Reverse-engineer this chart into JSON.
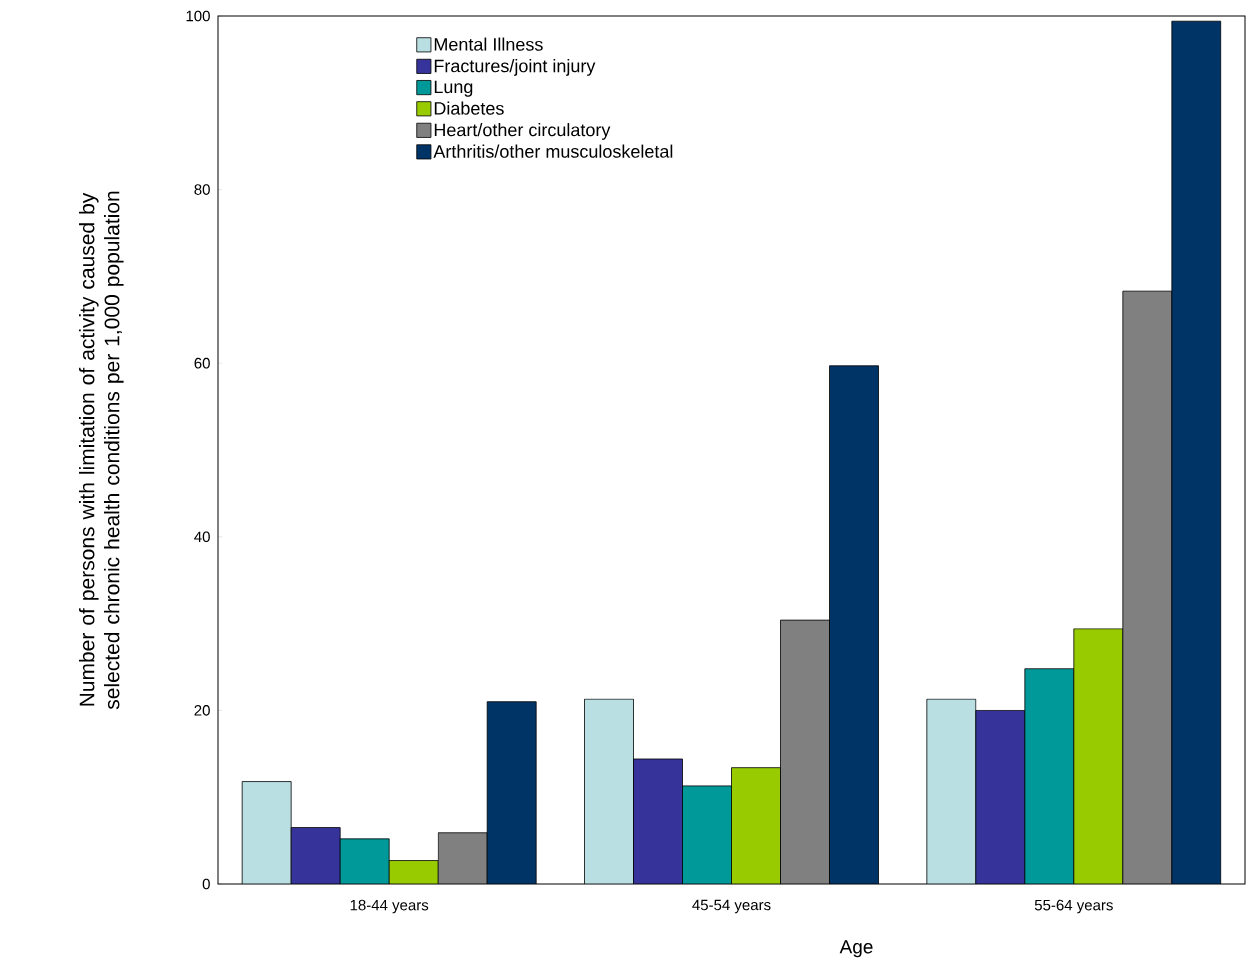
{
  "chart_data": {
    "type": "bar",
    "xlabel": "Age",
    "ylabel": "Number of persons with limitation of activity caused by selected chronic health conditions per 1,000 population",
    "categories": [
      "18-44 years",
      "45-54 years",
      "55-64 years"
    ],
    "series": [
      {
        "name": "Mental Illness",
        "color": "#b9dfe2",
        "values": [
          11.8,
          21.3,
          21.3
        ]
      },
      {
        "name": "Fractures/joint injury",
        "color": "#36349a",
        "values": [
          6.5,
          14.4,
          20.0
        ]
      },
      {
        "name": "Lung",
        "color": "#009999",
        "values": [
          5.2,
          11.3,
          24.8
        ]
      },
      {
        "name": "Diabetes",
        "color": "#99cc00",
        "values": [
          2.7,
          13.4,
          29.4
        ]
      },
      {
        "name": "Heart/other circulatory",
        "color": "#808080",
        "values": [
          5.9,
          30.4,
          68.3
        ]
      },
      {
        "name": "Arthritis/other musculoskeletal",
        "color": "#003366",
        "values": [
          21.0,
          59.7,
          99.4
        ]
      }
    ],
    "ylim": [
      0,
      100
    ],
    "yticks": [
      0,
      20,
      40,
      60,
      80,
      100
    ],
    "legend": "top left",
    "grid": false
  }
}
